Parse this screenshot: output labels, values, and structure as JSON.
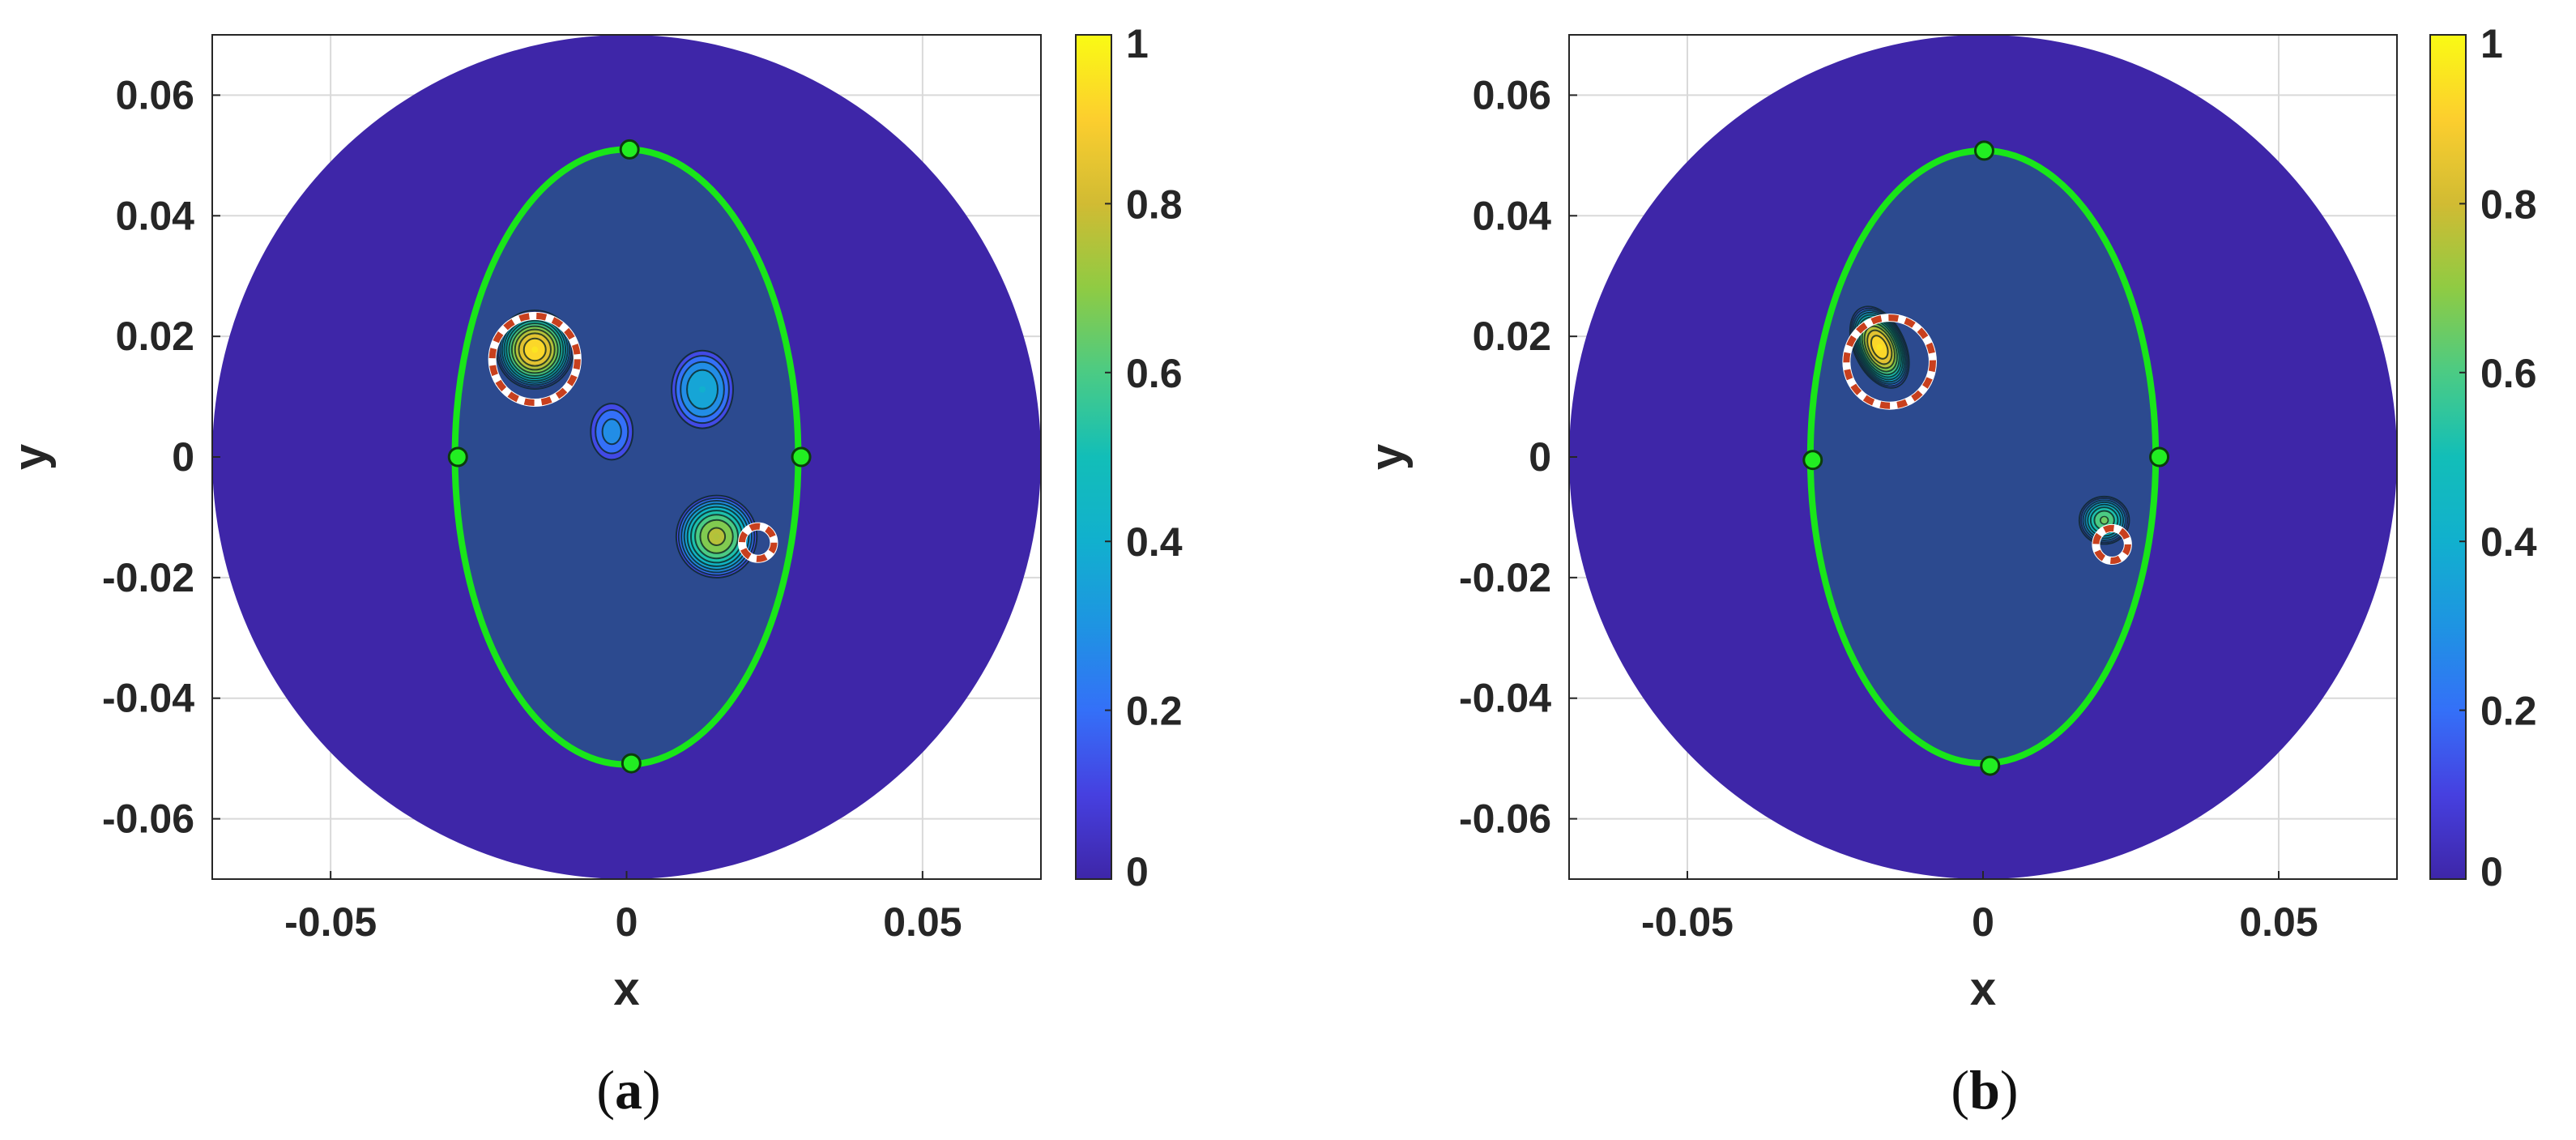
{
  "chart_data": [
    {
      "type": "heatmap",
      "panel_label": "a",
      "xlabel": "x",
      "ylabel": "y",
      "xlim": [
        -0.07,
        0.07
      ],
      "ylim": [
        -0.07,
        0.07
      ],
      "x_ticks": [
        -0.05,
        0,
        0.05
      ],
      "x_tick_labels": [
        "-0.05",
        "0",
        "0.05"
      ],
      "y_ticks": [
        0.06,
        0.04,
        0.02,
        0,
        -0.02,
        -0.04,
        -0.06
      ],
      "y_tick_labels": [
        "0.06",
        "0.04",
        "0.02",
        "0",
        "-0.02",
        "-0.04",
        "-0.06"
      ],
      "grid": true,
      "colorbar": {
        "range": [
          0,
          1
        ],
        "ticks": [
          0,
          0.2,
          0.4,
          0.6,
          0.8,
          1
        ],
        "tick_labels": [
          "0",
          "0.2",
          "0.4",
          "0.6",
          "0.8",
          "1"
        ],
        "colormap": "parula"
      },
      "domain_circle": {
        "cx": 0,
        "cy": 0,
        "r": 0.07,
        "color": "#3e26a8"
      },
      "ellipse": {
        "cx": 0,
        "cy": 0,
        "rx": 0.029,
        "ry": 0.051,
        "color": "#19e619",
        "fill": "#2c4a8f"
      },
      "ellipse_markers": [
        {
          "x": 0.0005,
          "y": 0.051
        },
        {
          "x": 0.0008,
          "y": -0.0508
        },
        {
          "x": -0.0285,
          "y": 0
        },
        {
          "x": 0.0295,
          "y": 0
        }
      ],
      "blobs": [
        {
          "x": -0.0155,
          "y": 0.0178,
          "rx": 0.0068,
          "ry": 0.0068,
          "peak": 0.95,
          "tilt": 0
        },
        {
          "x": 0.0128,
          "y": 0.0112,
          "rx": 0.0058,
          "ry": 0.0072,
          "peak": 0.4,
          "tilt": 0
        },
        {
          "x": -0.0025,
          "y": 0.0042,
          "rx": 0.0042,
          "ry": 0.0055,
          "peak": 0.28,
          "tilt": 0
        },
        {
          "x": 0.0152,
          "y": -0.0132,
          "rx": 0.0072,
          "ry": 0.0072,
          "peak": 0.75,
          "tilt": 0
        }
      ],
      "true_inclusions": [
        {
          "x": -0.0155,
          "y": 0.0162,
          "r": 0.0072
        },
        {
          "x": 0.0222,
          "y": -0.0142,
          "r": 0.0027
        }
      ]
    },
    {
      "type": "heatmap",
      "panel_label": "b",
      "xlabel": "x",
      "ylabel": "y",
      "xlim": [
        -0.07,
        0.07
      ],
      "ylim": [
        -0.07,
        0.07
      ],
      "x_ticks": [
        -0.05,
        0,
        0.05
      ],
      "x_tick_labels": [
        "-0.05",
        "0",
        "0.05"
      ],
      "y_ticks": [
        0.06,
        0.04,
        0.02,
        0,
        -0.02,
        -0.04,
        -0.06
      ],
      "y_tick_labels": [
        "0.06",
        "0.04",
        "0.02",
        "0",
        "-0.02",
        "-0.04",
        "-0.06"
      ],
      "grid": true,
      "colorbar": {
        "range": [
          0,
          1
        ],
        "ticks": [
          0,
          0.2,
          0.4,
          0.6,
          0.8,
          1
        ],
        "tick_labels": [
          "0",
          "0.2",
          "0.4",
          "0.6",
          "0.8",
          "1"
        ],
        "colormap": "parula"
      },
      "domain_circle": {
        "cx": 0,
        "cy": 0,
        "r": 0.07,
        "color": "#3e26a8"
      },
      "ellipse": {
        "cx": 0,
        "cy": 0,
        "rx": 0.0292,
        "ry": 0.0508,
        "color": "#19e619",
        "fill": "#2c4a8f"
      },
      "ellipse_markers": [
        {
          "x": 0.0002,
          "y": 0.0508
        },
        {
          "x": 0.0012,
          "y": -0.0512
        },
        {
          "x": -0.0288,
          "y": -0.0005
        },
        {
          "x": 0.0298,
          "y": 0
        }
      ],
      "blobs": [
        {
          "x": -0.0175,
          "y": 0.0182,
          "rx": 0.0045,
          "ry": 0.0075,
          "peak": 0.95,
          "tilt": -25
        },
        {
          "x": 0.0205,
          "y": -0.0105,
          "rx": 0.0045,
          "ry": 0.0042,
          "peak": 0.65,
          "tilt": 0
        }
      ],
      "true_inclusions": [
        {
          "x": -0.0158,
          "y": 0.0158,
          "r": 0.0073
        },
        {
          "x": 0.0218,
          "y": -0.0145,
          "r": 0.0027
        }
      ]
    }
  ]
}
